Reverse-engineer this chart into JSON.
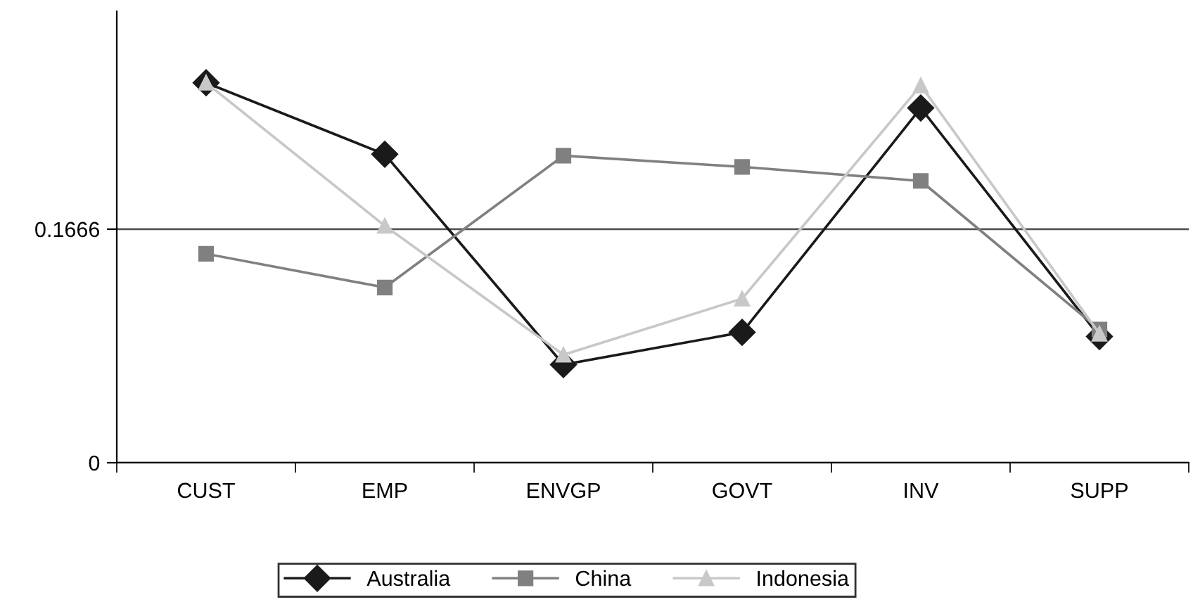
{
  "chart_data": {
    "type": "line",
    "categories": [
      "CUST",
      "EMP",
      "ENVGP",
      "GOVT",
      "INV",
      "SUPP"
    ],
    "series": [
      {
        "name": "Australia",
        "color": "#1a1a1a",
        "marker": "diamond",
        "values": [
          0.271,
          0.22,
          0.07,
          0.093,
          0.253,
          0.09
        ]
      },
      {
        "name": "China",
        "color": "#808080",
        "marker": "square",
        "values": [
          0.149,
          0.125,
          0.219,
          0.211,
          0.201,
          0.095
        ]
      },
      {
        "name": "Indonesia",
        "color": "#c8c8c8",
        "marker": "triangle",
        "values": [
          0.271,
          0.169,
          0.077,
          0.117,
          0.269,
          0.092
        ]
      }
    ],
    "ylim": [
      0,
      0.322
    ],
    "yticks": [
      0,
      0.1666
    ],
    "grid": "y",
    "legend": "bottom",
    "line_style": "solid"
  }
}
